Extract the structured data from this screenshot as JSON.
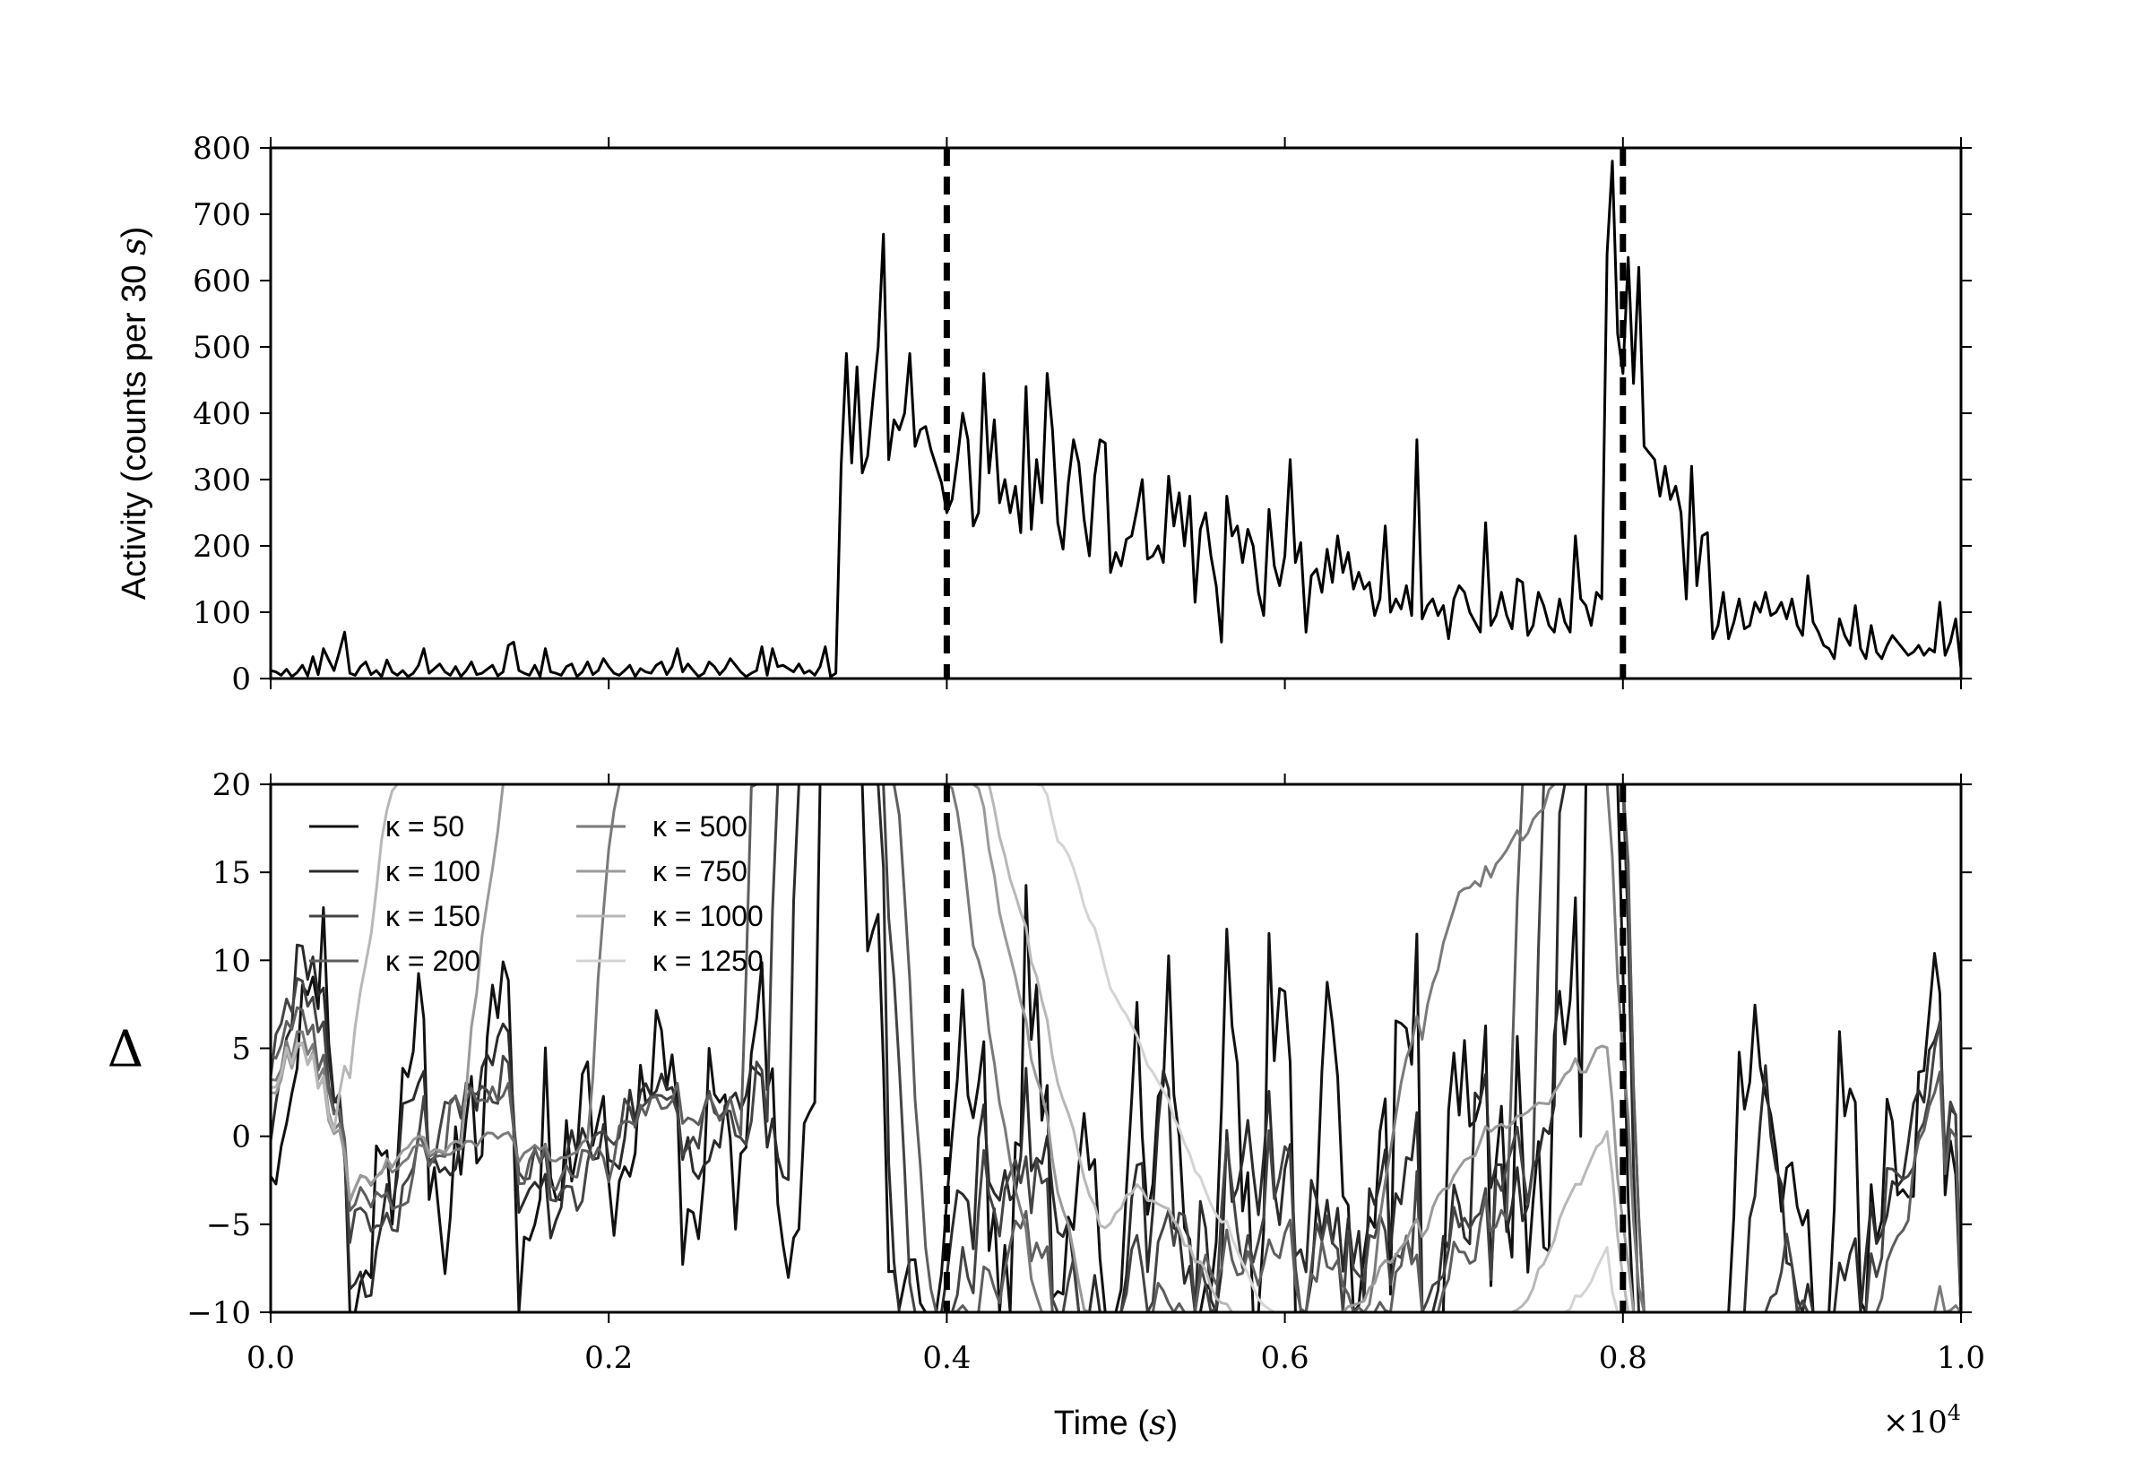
{
  "chart_data": [
    {
      "type": "line",
      "panel": "top",
      "ylabel_prefix": "Activity (counts per 30 ",
      "ylabel_unit": "s",
      "ylabel_suffix": ")",
      "xlim": [
        0,
        10000
      ],
      "ylim": [
        0,
        800
      ],
      "yticks": [
        0,
        100,
        200,
        300,
        400,
        500,
        600,
        700,
        800
      ],
      "xticks": [
        0,
        2000,
        4000,
        6000,
        8000,
        10000
      ],
      "vlines": [
        4000,
        8000
      ],
      "series": [
        {
          "color": "#000000",
          "values": [
            12,
            10,
            5,
            14,
            3,
            9,
            20,
            4,
            33,
            6,
            45,
            28,
            12,
            40,
            70,
            8,
            5,
            18,
            25,
            6,
            12,
            3,
            28,
            10,
            5,
            12,
            3,
            8,
            20,
            45,
            8,
            15,
            22,
            10,
            5,
            18,
            3,
            12,
            25,
            6,
            8,
            14,
            20,
            4,
            10,
            50,
            55,
            12,
            8,
            5,
            20,
            3,
            45,
            10,
            8,
            5,
            18,
            22,
            3,
            10,
            25,
            6,
            12,
            30,
            18,
            8,
            5,
            12,
            20,
            3,
            15,
            10,
            8,
            20,
            25,
            6,
            18,
            45,
            10,
            22,
            12,
            3,
            8,
            25,
            18,
            6,
            15,
            30,
            20,
            10,
            3,
            8,
            12,
            48,
            5,
            45,
            18,
            20,
            15,
            10,
            22,
            8,
            12,
            5,
            18,
            48,
            3,
            8,
            320,
            490,
            325,
            470,
            310,
            335,
            420,
            500,
            670,
            330,
            390,
            375,
            400,
            490,
            350,
            375,
            380,
            345,
            320,
            295,
            250,
            270,
            330,
            400,
            360,
            230,
            250,
            460,
            310,
            390,
            265,
            300,
            250,
            290,
            220,
            440,
            225,
            330,
            265,
            460,
            375,
            235,
            195,
            295,
            360,
            325,
            240,
            185,
            305,
            360,
            355,
            160,
            190,
            170,
            210,
            215,
            255,
            300,
            180,
            185,
            200,
            175,
            305,
            230,
            280,
            200,
            275,
            115,
            225,
            250,
            185,
            140,
            55,
            275,
            215,
            230,
            175,
            225,
            200,
            130,
            95,
            255,
            170,
            140,
            185,
            330,
            175,
            205,
            70,
            155,
            165,
            130,
            195,
            145,
            215,
            160,
            190,
            135,
            160,
            135,
            145,
            95,
            120,
            230,
            100,
            120,
            105,
            140,
            95,
            360,
            90,
            110,
            120,
            95,
            110,
            60,
            120,
            140,
            130,
            100,
            85,
            70,
            235,
            80,
            95,
            130,
            95,
            75,
            150,
            145,
            65,
            80,
            130,
            110,
            80,
            70,
            120,
            85,
            70,
            215,
            120,
            110,
            80,
            130,
            120,
            640,
            780,
            520,
            460,
            635,
            445,
            620,
            350,
            340,
            330,
            275,
            320,
            270,
            290,
            250,
            120,
            320,
            140,
            215,
            220,
            60,
            80,
            130,
            60,
            85,
            120,
            75,
            80,
            115,
            100,
            130,
            95,
            100,
            115,
            90,
            120,
            80,
            65,
            155,
            85,
            70,
            50,
            45,
            30,
            90,
            65,
            50,
            110,
            45,
            30,
            80,
            40,
            30,
            50,
            65,
            55,
            45,
            35,
            40,
            50,
            35,
            45,
            40,
            115,
            35,
            55,
            90,
            15
          ]
        }
      ]
    },
    {
      "type": "line",
      "panel": "bottom",
      "xlabel_prefix": "Time (",
      "xlabel_unit": "s",
      "xlabel_suffix": ")",
      "ylabel": "Δ",
      "x_multiplier_label": "×10",
      "x_multiplier_exp": "4",
      "x_tick_labels": [
        "0.0",
        "0.2",
        "0.4",
        "0.6",
        "0.8",
        "1.0"
      ],
      "xlim": [
        0,
        10000
      ],
      "ylim": [
        -10,
        20
      ],
      "yticks": [
        -10,
        -5,
        0,
        5,
        10,
        15,
        20
      ],
      "xticks": [
        0,
        2000,
        4000,
        6000,
        8000,
        10000
      ],
      "vlines": [
        4000,
        8000
      ],
      "legend_location": "upper-left",
      "series": [
        {
          "name": "κ = 50",
          "kappa": 50,
          "color": "#111111"
        },
        {
          "name": "κ = 100",
          "kappa": 100,
          "color": "#2b2b2b"
        },
        {
          "name": "κ = 150",
          "kappa": 150,
          "color": "#444444"
        },
        {
          "name": "κ = 200",
          "kappa": 200,
          "color": "#5e5e5e"
        },
        {
          "name": "κ = 500",
          "kappa": 500,
          "color": "#7a7a7a"
        },
        {
          "name": "κ = 750",
          "kappa": 750,
          "color": "#9a9a9a"
        },
        {
          "name": "κ = 1000",
          "kappa": 1000,
          "color": "#b8b8b8"
        },
        {
          "name": "κ = 1250",
          "kappa": 1250,
          "color": "#d4d4d4"
        }
      ]
    }
  ]
}
